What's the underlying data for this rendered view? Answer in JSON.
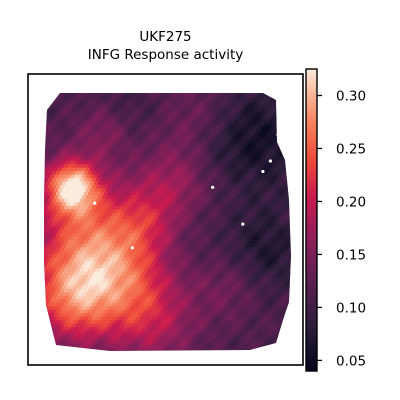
{
  "chart_data": {
    "type": "heatmap",
    "title": [
      "UKF275",
      "INFG Response activity"
    ],
    "xlabel": "",
    "ylabel": "",
    "colorbar": {
      "colormap": "rocket",
      "vmin": 0.04,
      "vmax": 0.325,
      "ticks": [
        0.05,
        0.1,
        0.15,
        0.2,
        0.25,
        0.3
      ],
      "tick_labels": [
        "0.05",
        "0.10",
        "0.15",
        "0.20",
        "0.25",
        "0.30"
      ]
    },
    "hotspots": [
      {
        "x": 0.12,
        "y": 0.37,
        "r": 0.07,
        "value": 0.32
      },
      {
        "x": 0.2,
        "y": 0.58,
        "r": 0.17,
        "value": 0.25
      },
      {
        "x": 0.12,
        "y": 0.8,
        "r": 0.12,
        "value": 0.23
      },
      {
        "x": 0.32,
        "y": 0.73,
        "r": 0.14,
        "value": 0.19
      },
      {
        "x": 0.45,
        "y": 0.88,
        "r": 0.12,
        "value": 0.18
      },
      {
        "x": 0.52,
        "y": 0.35,
        "r": 0.1,
        "value": 0.17
      },
      {
        "x": 0.25,
        "y": 0.15,
        "r": 0.08,
        "value": 0.17
      },
      {
        "x": 0.42,
        "y": 0.5,
        "r": 0.09,
        "value": 0.16
      },
      {
        "x": 0.75,
        "y": 0.74,
        "r": 0.1,
        "value": 0.15
      },
      {
        "x": 0.6,
        "y": 0.12,
        "r": 0.1,
        "value": 0.14
      },
      {
        "x": 0.88,
        "y": 0.62,
        "r": 0.12,
        "value": 0.06
      },
      {
        "x": 0.88,
        "y": 0.25,
        "r": 0.12,
        "value": 0.07
      },
      {
        "x": 0.7,
        "y": 0.22,
        "r": 0.08,
        "value": 0.09
      },
      {
        "x": 0.55,
        "y": 0.6,
        "r": 0.1,
        "value": 0.1
      },
      {
        "x": 0.3,
        "y": 0.1,
        "r": 0.1,
        "value": 0.08
      },
      {
        "x": 0.85,
        "y": 0.1,
        "r": 0.1,
        "value": 0.08
      }
    ],
    "background_value": 0.11,
    "gap_spots": [
      {
        "x": 0.36,
        "y": 0.6
      },
      {
        "x": 0.21,
        "y": 0.43
      },
      {
        "x": 0.68,
        "y": 0.37
      },
      {
        "x": 0.8,
        "y": 0.51
      },
      {
        "x": 0.88,
        "y": 0.31
      },
      {
        "x": 0.91,
        "y": 0.27
      },
      {
        "x": 0.94,
        "y": 0.17
      }
    ]
  }
}
